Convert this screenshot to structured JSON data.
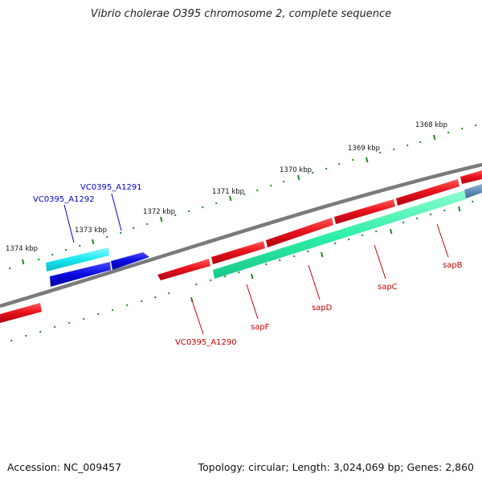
{
  "title": "Vibrio cholerae O395 chromosome 2, complete sequence",
  "footer": {
    "accession": "Accession: NC_009457",
    "topology": "Topology: circular; Length: 3,024,069 bp; Genes: 2,860"
  },
  "colors": {
    "forward_strand": "#e8141c",
    "forward_strand_label": "#cc0000",
    "reverse_strand": "#0a0ae0",
    "reverse_strand_label": "#0000cc",
    "highlight_cyan": "#18e8f0",
    "highlight_green": "#2ff0a8",
    "highlight_steelblue": "#4f82b0",
    "backbone": "#7a7a7a",
    "tick_marks": "#1e8a1e"
  },
  "scale_labels": [
    "1374 kbp",
    "1373 kbp",
    "1372 kbp",
    "1371 kbp",
    "1370 kbp",
    "1369 kbp",
    "1368 kbp"
  ],
  "genes": [
    {
      "id": "vc0395_a1292",
      "label": "VC0395_A1292",
      "strand": "reverse"
    },
    {
      "id": "vc0395_a1291",
      "label": "VC0395_A1291",
      "strand": "reverse"
    },
    {
      "id": "vc0395_a1290",
      "label": "VC0395_A1290",
      "strand": "forward"
    },
    {
      "id": "sapf",
      "label": "sapF",
      "strand": "forward"
    },
    {
      "id": "sapd",
      "label": "sapD",
      "strand": "forward"
    },
    {
      "id": "sapc",
      "label": "sapC",
      "strand": "forward"
    },
    {
      "id": "sapb",
      "label": "sapB",
      "strand": "forward"
    }
  ]
}
